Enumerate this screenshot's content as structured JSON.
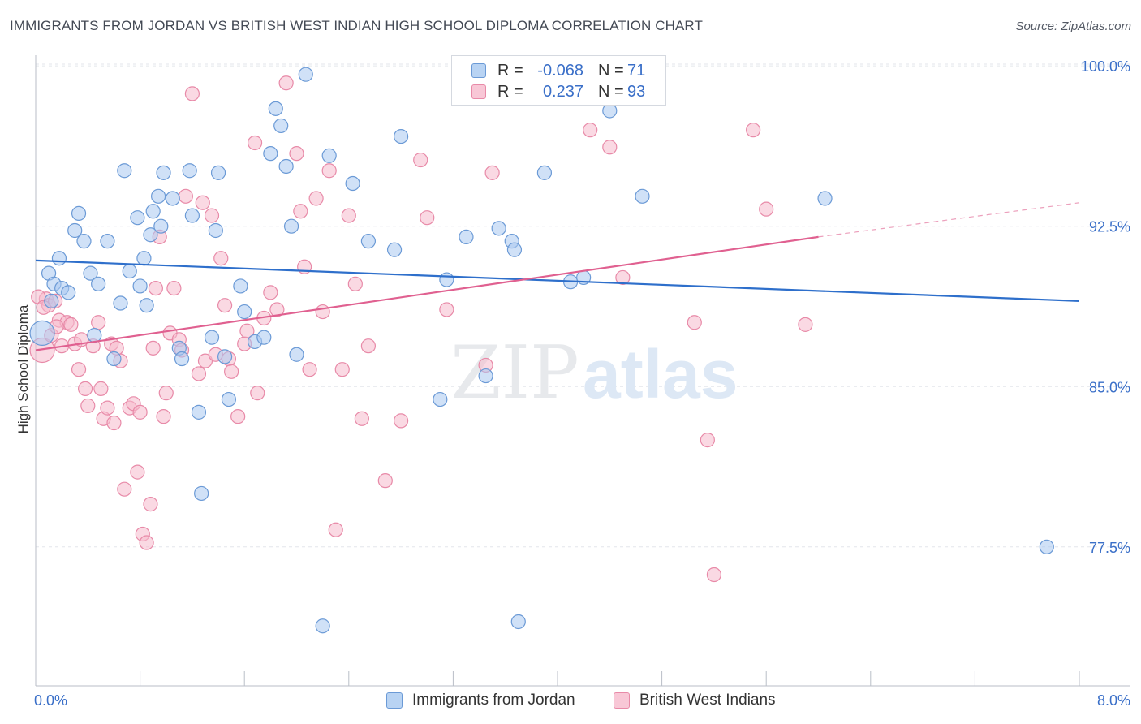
{
  "header": {
    "title": "IMMIGRANTS FROM JORDAN VS BRITISH WEST INDIAN HIGH SCHOOL DIPLOMA CORRELATION CHART",
    "source": "Source: ZipAtlas.com"
  },
  "watermark": {
    "part1": "ZIP",
    "part2": "atlas"
  },
  "colors": {
    "blue_fill": "#a9c8f0",
    "blue_stroke": "#6b9ad6",
    "blue_line": "#2e6fcb",
    "pink_fill": "#f5b9cc",
    "pink_stroke": "#e88aa8",
    "pink_line": "#e06090",
    "tick_label": "#3a6fc8",
    "grid": "#e3e6eb"
  },
  "legend": {
    "rows": [
      {
        "r_label": "R =",
        "r_value": "-0.068",
        "n_label": "N =",
        "n_value": "71"
      },
      {
        "r_label": "R =",
        "r_value": "0.237",
        "n_label": "N =",
        "n_value": "93"
      }
    ],
    "bottom": [
      "Immigrants from Jordan",
      "British West Indians"
    ]
  },
  "chart_data": {
    "type": "scatter",
    "title": "IMMIGRANTS FROM JORDAN VS BRITISH WEST INDIAN HIGH SCHOOL DIPLOMA CORRELATION CHART",
    "xlabel": "",
    "ylabel": "High School Diploma",
    "xlim": [
      0,
      8
    ],
    "ylim": [
      71,
      100.5
    ],
    "x_ticks": [
      "0.0%",
      "8.0%"
    ],
    "y_ticks": [
      {
        "value": 100,
        "label": "100.0%"
      },
      {
        "value": 92.5,
        "label": "92.5%"
      },
      {
        "value": 85,
        "label": "85.0%"
      },
      {
        "value": 77.5,
        "label": "77.5%"
      }
    ],
    "grid": true,
    "legend_position": "top-center",
    "series": [
      {
        "name": "Immigrants from Jordan",
        "r": -0.068,
        "n": 71,
        "trend": {
          "x0": 0,
          "y0": 90.9,
          "x1": 8,
          "y1": 89.0
        },
        "points": [
          [
            0.05,
            87.5
          ],
          [
            0.1,
            90.3
          ],
          [
            0.12,
            89.0
          ],
          [
            0.14,
            89.8
          ],
          [
            0.18,
            91.0
          ],
          [
            0.2,
            89.6
          ],
          [
            0.25,
            89.4
          ],
          [
            0.3,
            92.3
          ],
          [
            0.33,
            93.1
          ],
          [
            0.37,
            91.8
          ],
          [
            0.42,
            90.3
          ],
          [
            0.45,
            87.4
          ],
          [
            0.48,
            89.8
          ],
          [
            0.55,
            91.8
          ],
          [
            0.6,
            86.3
          ],
          [
            0.65,
            88.9
          ],
          [
            0.68,
            95.1
          ],
          [
            0.72,
            90.4
          ],
          [
            0.78,
            92.9
          ],
          [
            0.8,
            89.7
          ],
          [
            0.83,
            91.0
          ],
          [
            0.85,
            88.8
          ],
          [
            0.88,
            92.1
          ],
          [
            0.9,
            93.2
          ],
          [
            0.94,
            93.9
          ],
          [
            0.96,
            92.5
          ],
          [
            0.98,
            95.0
          ],
          [
            1.05,
            93.8
          ],
          [
            1.1,
            86.8
          ],
          [
            1.12,
            86.3
          ],
          [
            1.18,
            95.1
          ],
          [
            1.2,
            93.0
          ],
          [
            1.25,
            83.8
          ],
          [
            1.27,
            80.0
          ],
          [
            1.35,
            87.3
          ],
          [
            1.38,
            92.3
          ],
          [
            1.4,
            95.0
          ],
          [
            1.45,
            86.4
          ],
          [
            1.48,
            84.4
          ],
          [
            1.57,
            89.7
          ],
          [
            1.6,
            88.5
          ],
          [
            1.68,
            87.1
          ],
          [
            1.75,
            87.3
          ],
          [
            1.8,
            95.9
          ],
          [
            1.84,
            98.0
          ],
          [
            1.88,
            97.2
          ],
          [
            1.92,
            95.3
          ],
          [
            1.96,
            92.5
          ],
          [
            2.0,
            86.5
          ],
          [
            2.07,
            99.6
          ],
          [
            2.2,
            73.8
          ],
          [
            2.25,
            95.8
          ],
          [
            2.43,
            94.5
          ],
          [
            2.55,
            91.8
          ],
          [
            2.75,
            91.4
          ],
          [
            2.8,
            96.7
          ],
          [
            3.1,
            84.4
          ],
          [
            3.15,
            90.0
          ],
          [
            3.3,
            92.0
          ],
          [
            3.45,
            85.5
          ],
          [
            3.55,
            92.4
          ],
          [
            3.65,
            91.8
          ],
          [
            3.67,
            91.4
          ],
          [
            3.7,
            74.0
          ],
          [
            3.75,
            100.0
          ],
          [
            3.9,
            95.0
          ],
          [
            4.1,
            89.9
          ],
          [
            4.2,
            90.1
          ],
          [
            4.4,
            97.9
          ],
          [
            4.65,
            93.9
          ],
          [
            6.05,
            93.8
          ],
          [
            7.75,
            77.5
          ]
        ]
      },
      {
        "name": "British West Indians",
        "r": 0.237,
        "n": 93,
        "trend": {
          "x0": 0,
          "y0": 86.7,
          "x1": 6.0,
          "y1": 92.0,
          "x2": 8,
          "y2": 93.6
        },
        "points": [
          [
            0.05,
            86.7
          ],
          [
            0.08,
            89.1
          ],
          [
            0.1,
            88.8
          ],
          [
            0.12,
            87.4
          ],
          [
            0.15,
            89.0
          ],
          [
            0.18,
            88.1
          ],
          [
            0.2,
            86.9
          ],
          [
            0.24,
            88.0
          ],
          [
            0.27,
            87.9
          ],
          [
            0.3,
            87.0
          ],
          [
            0.33,
            85.8
          ],
          [
            0.35,
            87.2
          ],
          [
            0.38,
            84.9
          ],
          [
            0.4,
            84.1
          ],
          [
            0.44,
            86.9
          ],
          [
            0.48,
            88.0
          ],
          [
            0.5,
            84.9
          ],
          [
            0.52,
            83.5
          ],
          [
            0.55,
            84.0
          ],
          [
            0.58,
            87.0
          ],
          [
            0.6,
            83.3
          ],
          [
            0.62,
            86.8
          ],
          [
            0.65,
            86.2
          ],
          [
            0.68,
            80.2
          ],
          [
            0.72,
            84.0
          ],
          [
            0.75,
            84.2
          ],
          [
            0.78,
            81.0
          ],
          [
            0.8,
            83.8
          ],
          [
            0.82,
            78.1
          ],
          [
            0.85,
            77.7
          ],
          [
            0.88,
            79.5
          ],
          [
            0.9,
            86.8
          ],
          [
            0.92,
            89.6
          ],
          [
            0.95,
            92.0
          ],
          [
            0.98,
            83.6
          ],
          [
            1.0,
            84.7
          ],
          [
            1.03,
            87.5
          ],
          [
            1.06,
            89.6
          ],
          [
            1.1,
            87.2
          ],
          [
            1.12,
            86.7
          ],
          [
            1.15,
            93.9
          ],
          [
            1.2,
            98.7
          ],
          [
            1.25,
            85.6
          ],
          [
            1.28,
            93.6
          ],
          [
            1.3,
            86.2
          ],
          [
            1.35,
            93.0
          ],
          [
            1.38,
            86.5
          ],
          [
            1.42,
            91.0
          ],
          [
            1.45,
            88.8
          ],
          [
            1.48,
            86.3
          ],
          [
            1.5,
            85.7
          ],
          [
            1.55,
            83.6
          ],
          [
            1.6,
            87.0
          ],
          [
            1.62,
            87.6
          ],
          [
            1.68,
            96.4
          ],
          [
            1.7,
            84.7
          ],
          [
            1.75,
            88.2
          ],
          [
            1.8,
            89.4
          ],
          [
            1.85,
            88.6
          ],
          [
            1.92,
            99.2
          ],
          [
            2.0,
            95.9
          ],
          [
            2.03,
            93.2
          ],
          [
            2.06,
            90.6
          ],
          [
            2.1,
            85.8
          ],
          [
            2.15,
            93.8
          ],
          [
            2.2,
            88.5
          ],
          [
            2.25,
            95.1
          ],
          [
            2.3,
            78.3
          ],
          [
            2.35,
            85.8
          ],
          [
            2.4,
            93.0
          ],
          [
            2.45,
            89.8
          ],
          [
            2.5,
            83.5
          ],
          [
            2.55,
            86.9
          ],
          [
            2.68,
            80.6
          ],
          [
            2.8,
            83.4
          ],
          [
            2.95,
            95.6
          ],
          [
            3.0,
            92.9
          ],
          [
            3.15,
            88.6
          ],
          [
            3.45,
            86.0
          ],
          [
            3.5,
            95.0
          ],
          [
            3.75,
            99.8
          ],
          [
            4.25,
            97.0
          ],
          [
            4.4,
            96.2
          ],
          [
            4.5,
            90.1
          ],
          [
            5.05,
            88.0
          ],
          [
            5.15,
            82.5
          ],
          [
            5.2,
            76.2
          ],
          [
            5.5,
            97.0
          ],
          [
            5.6,
            93.3
          ],
          [
            5.9,
            87.9
          ],
          [
            0.02,
            89.2
          ],
          [
            0.06,
            88.7
          ],
          [
            0.16,
            87.8
          ]
        ]
      }
    ]
  }
}
